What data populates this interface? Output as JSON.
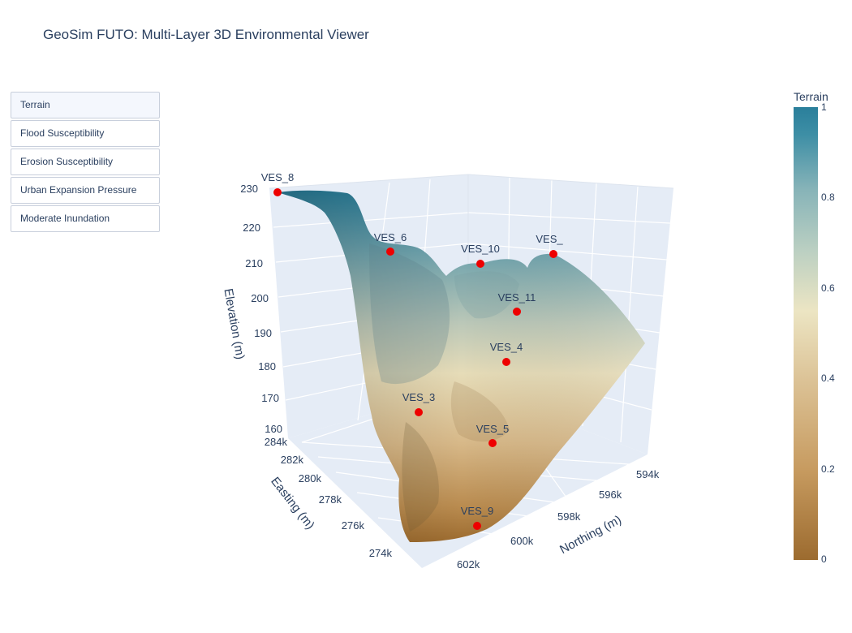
{
  "title": "GeoSim FUTO: Multi-Layer 3D Environmental Viewer",
  "layer_buttons": [
    {
      "label": "Terrain",
      "active": true
    },
    {
      "label": "Flood Susceptibility",
      "active": false
    },
    {
      "label": "Erosion Susceptibility",
      "active": false
    },
    {
      "label": "Urban Expansion Pressure",
      "active": false
    },
    {
      "label": "Moderate Inundation",
      "active": false
    }
  ],
  "colorbar": {
    "title": "Terrain",
    "ticks": [
      "1",
      "0.8",
      "0.6",
      "0.4",
      "0.2",
      "0"
    ]
  },
  "colors": {
    "low": "#9c6b2f",
    "mid": "#ece5c3",
    "high": "#2a7f9b",
    "marker": "#ee0000",
    "grid": "#e5ecf6"
  },
  "chart_data": {
    "type": "surface",
    "title": "GeoSim FUTO: Multi-Layer 3D Environmental Viewer",
    "axes": {
      "z": {
        "label": "Elevation (m)",
        "ticks": [
          "160",
          "170",
          "180",
          "190",
          "200",
          "210",
          "220",
          "230"
        ],
        "range": [
          160,
          230
        ]
      },
      "easting": {
        "label": "Easting (m)",
        "ticks": [
          "274k",
          "276k",
          "278k",
          "280k",
          "282k",
          "284k"
        ]
      },
      "northing": {
        "label": "Northing (m)",
        "ticks": [
          "594k",
          "596k",
          "598k",
          "600k",
          "602k"
        ]
      }
    },
    "points": [
      {
        "label": "VES_8",
        "elevation": 230
      },
      {
        "label": "VES_6",
        "elevation": 213
      },
      {
        "label": "VES_10",
        "elevation": 212
      },
      {
        "label": "VES_",
        "elevation": 214
      },
      {
        "label": "VES_11",
        "elevation": 205
      },
      {
        "label": "VES_4",
        "elevation": 192
      },
      {
        "label": "VES_3",
        "elevation": 178
      },
      {
        "label": "VES_5",
        "elevation": 172
      },
      {
        "label": "VES_9",
        "elevation": 160
      }
    ]
  }
}
